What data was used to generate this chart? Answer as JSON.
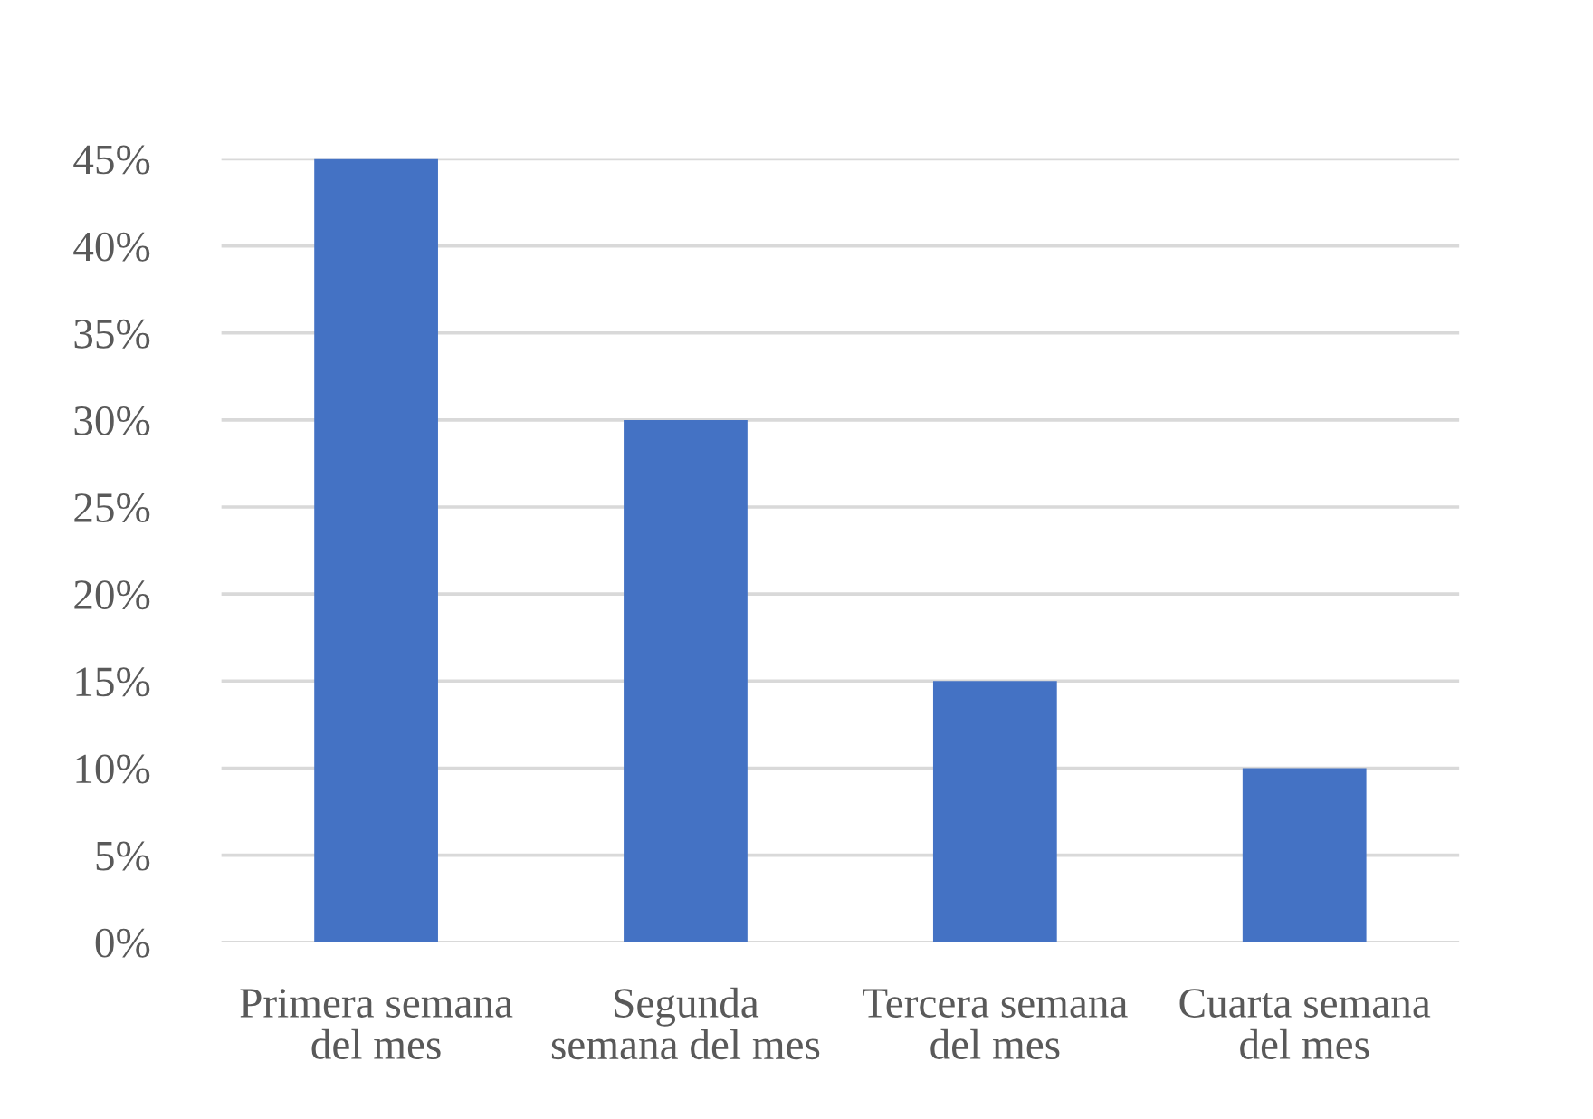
{
  "chart_data": {
    "type": "bar",
    "categories": [
      "Primera semana del mes",
      "Segunda semana del mes",
      "Tercera semana del mes",
      "Cuarta semana del mes"
    ],
    "values": [
      45,
      30,
      15,
      10
    ],
    "color": "#4472c4",
    "ylim": [
      0,
      45
    ],
    "yticks": [
      {
        "value": 0,
        "label": "0%"
      },
      {
        "value": 5,
        "label": "5%"
      },
      {
        "value": 10,
        "label": "10%"
      },
      {
        "value": 15,
        "label": "15%"
      },
      {
        "value": 20,
        "label": "20%"
      },
      {
        "value": 25,
        "label": "25%"
      },
      {
        "value": 30,
        "label": "30%"
      },
      {
        "value": 35,
        "label": "35%"
      },
      {
        "value": 40,
        "label": "40%"
      },
      {
        "value": 45,
        "label": "45%"
      }
    ],
    "grid": "y"
  }
}
